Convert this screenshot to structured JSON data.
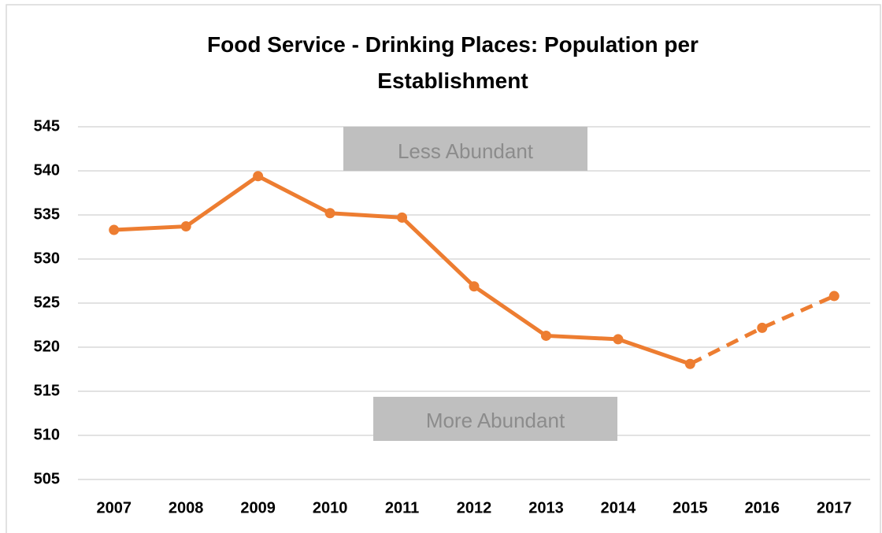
{
  "chart_data": {
    "type": "line",
    "title": "Food Service - Drinking Places: Population per Establishment",
    "annotations": [
      "Less Abundant",
      "More Abundant"
    ],
    "categories": [
      "2007",
      "2008",
      "2009",
      "2010",
      "2011",
      "2012",
      "2013",
      "2014",
      "2015",
      "2016",
      "2017"
    ],
    "series": [
      {
        "name": "Population per Establishment",
        "color": "#ed7d31",
        "values": [
          533.3,
          533.7,
          539.4,
          535.2,
          534.7,
          526.9,
          521.3,
          520.9,
          518.1,
          522.2,
          525.8
        ]
      }
    ],
    "dashed_after": "2015",
    "ylim": [
      505,
      545
    ],
    "yticks": [
      505,
      510,
      515,
      520,
      525,
      530,
      535,
      540,
      545
    ],
    "grid": true,
    "legend": false
  }
}
